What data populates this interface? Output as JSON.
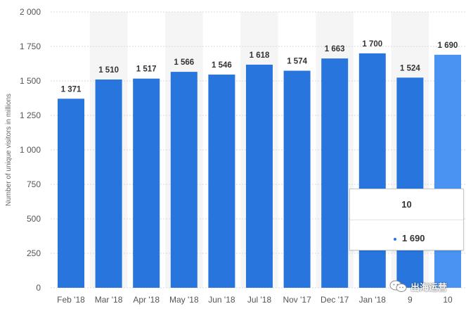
{
  "chart_data": {
    "type": "bar",
    "categories": [
      "Feb '18",
      "Mar '18",
      "Apr '18",
      "May '18",
      "Jun '18",
      "Jul '18",
      "Nov '17",
      "Dec '17",
      "Jan '18",
      "9",
      "10"
    ],
    "values": [
      1371,
      1510,
      1517,
      1566,
      1546,
      1618,
      1574,
      1663,
      1700,
      1524,
      1690
    ],
    "value_labels": [
      "1 371",
      "1 510",
      "1 517",
      "1 566",
      "1 546",
      "1 618",
      "1 574",
      "1 663",
      "1 700",
      "1 524",
      "1 690"
    ],
    "ylabel": "Number of unique visitors in millions",
    "ylim": [
      0,
      2000
    ],
    "yticks": [
      0,
      250,
      500,
      750,
      1000,
      1250,
      1500,
      1750,
      2000
    ],
    "ytick_labels": [
      "0",
      "250",
      "500",
      "750",
      "1 000",
      "1 250",
      "1 500",
      "1 750",
      "2 000"
    ],
    "grid": true,
    "highlighted_index": 10,
    "colors": {
      "bar": "#2876dd",
      "bar_highlight": "#4b93f2",
      "grid": "#d9d9d9",
      "band": "#f5f5f5"
    }
  },
  "tooltip": {
    "title": "10",
    "value": "1 690"
  },
  "watermark": {
    "text": "出海运营",
    "icon": "wechat-chat-bubbles-icon"
  }
}
